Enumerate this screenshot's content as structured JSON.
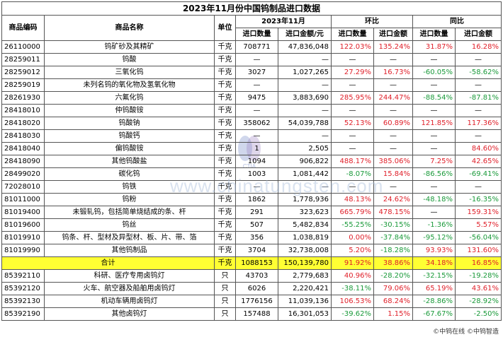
{
  "title": "2023年11月份中国钨制品进口数据",
  "headers": {
    "code": "商品编码",
    "name": "商品名称",
    "unit": "单位",
    "month_group": "2023年11月",
    "mom_group": "环比",
    "yoy_group": "同比",
    "import_qty": "进口数量",
    "import_amount": "进口金额/元",
    "qty": "进口数量",
    "amount": "进口金额"
  },
  "rows": [
    {
      "code": "26110000",
      "name": "钨矿砂及其精矿",
      "unit": "千克",
      "qty": "708771",
      "amt": "47,836,048",
      "mom_q": "122.03%",
      "mom_a": "135.24%",
      "yoy_q": "31.87%",
      "yoy_a": "16.28%"
    },
    {
      "code": "28259011",
      "name": "钨酸",
      "unit": "千克",
      "qty": "—",
      "amt": "—",
      "mom_q": "—",
      "mom_a": "—",
      "yoy_q": "—",
      "yoy_a": "—"
    },
    {
      "code": "28259012",
      "name": "三氧化钨",
      "unit": "千克",
      "qty": "3027",
      "amt": "1,027,265",
      "mom_q": "27.29%",
      "mom_a": "16.73%",
      "yoy_q": "-60.05%",
      "yoy_a": "-58.62%"
    },
    {
      "code": "28259019",
      "name": "未列名钨的氧化物及氢氧化物",
      "unit": "千克",
      "qty": "—",
      "amt": "—",
      "mom_q": "—",
      "mom_a": "—",
      "yoy_q": "—",
      "yoy_a": "—"
    },
    {
      "code": "28261930",
      "name": "六氟化钨",
      "unit": "千克",
      "qty": "9475",
      "amt": "3,883,690",
      "mom_q": "285.95%",
      "mom_a": "244.47%",
      "yoy_q": "-88.54%",
      "yoy_a": "-87.81%"
    },
    {
      "code": "28418010",
      "name": "仲钨酸铵",
      "unit": "千克",
      "qty": "—",
      "amt": "—",
      "mom_q": "—",
      "mom_a": "—",
      "yoy_q": "—",
      "yoy_a": "—"
    },
    {
      "code": "28418020",
      "name": "钨酸钠",
      "unit": "千克",
      "qty": "358062",
      "amt": "54,039,788",
      "mom_q": "52.13%",
      "mom_a": "60.89%",
      "yoy_q": "121.85%",
      "yoy_a": "117.36%"
    },
    {
      "code": "28418030",
      "name": "钨酸钙",
      "unit": "千克",
      "qty": "—",
      "amt": "—",
      "mom_q": "—",
      "mom_a": "—",
      "yoy_q": "—",
      "yoy_a": "—"
    },
    {
      "code": "28418040",
      "name": "偏钨酸铵",
      "unit": "千克",
      "qty": "1",
      "amt": "2,505",
      "mom_q": "—",
      "mom_a": "—",
      "yoy_q": "—",
      "yoy_a": "84.60%"
    },
    {
      "code": "28418090",
      "name": "其他钨酸盐",
      "unit": "千克",
      "qty": "1094",
      "amt": "906,822",
      "mom_q": "488.17%",
      "mom_a": "385.06%",
      "yoy_q": "7.25%",
      "yoy_a": "42.65%"
    },
    {
      "code": "28499020",
      "name": "碳化钨",
      "unit": "千克",
      "qty": "1003",
      "amt": "1,081,442",
      "mom_q": "-8.07%",
      "mom_a": "15.84%",
      "yoy_q": "-86.56%",
      "yoy_a": "-69.41%"
    },
    {
      "code": "72028010",
      "name": "钨铁",
      "unit": "千克",
      "qty": "—",
      "amt": "—",
      "mom_q": "—",
      "mom_a": "—",
      "yoy_q": "—",
      "yoy_a": "—"
    },
    {
      "code": "81011000",
      "name": "钨粉",
      "unit": "千克",
      "qty": "1862",
      "amt": "1,778,936",
      "mom_q": "48.13%",
      "mom_a": "24.62%",
      "yoy_q": "-48.18%",
      "yoy_a": "-16.35%"
    },
    {
      "code": "81019400",
      "name": "未锻轧钨，包括简单烧结成的条、杆",
      "unit": "千克",
      "qty": "291",
      "amt": "323,623",
      "mom_q": "665.79%",
      "mom_a": "478.15%",
      "yoy_q": "—",
      "yoy_a": "159.31%"
    },
    {
      "code": "81019600",
      "name": "钨丝",
      "unit": "千克",
      "qty": "507",
      "amt": "5,482,834",
      "mom_q": "-55.25%",
      "mom_a": "-30.15%",
      "yoy_q": "-1.36%",
      "yoy_a": "5.57%"
    },
    {
      "code": "81019910",
      "name": "钨条、杆、型材及异型材、板、片、带、箔",
      "unit": "千克",
      "qty": "356",
      "amt": "1,038,819",
      "mom_q": "0.00%",
      "mom_a": "-37.84%",
      "yoy_q": "-95.12%",
      "yoy_a": "-56.04%"
    },
    {
      "code": "81019990",
      "name": "其他钨制品",
      "unit": "千克",
      "qty": "3704",
      "amt": "32,738,008",
      "mom_q": "5.20%",
      "mom_a": "-18.28%",
      "yoy_q": "93.93%",
      "yoy_a": "131.60%"
    }
  ],
  "total": {
    "name": "合计",
    "unit": "千克",
    "qty": "1088153",
    "amt": "150,139,780",
    "mom_q": "91.92%",
    "mom_a": "38.86%",
    "yoy_q": "34.18%",
    "yoy_a": "16.85%"
  },
  "lamp_rows": [
    {
      "code": "85392110",
      "name": "科研、医疗专用卤钨灯",
      "unit": "只",
      "qty": "43703",
      "amt": "2,779,683",
      "mom_q": "40.96%",
      "mom_a": "-28.20%",
      "yoy_q": "-32.15%",
      "yoy_a": "-19.28%"
    },
    {
      "code": "85392120",
      "name": "火车、航空器及船舶用卤钨灯",
      "unit": "只",
      "qty": "6026",
      "amt": "2,220,421",
      "mom_q": "-38.11%",
      "mom_a": "79.06%",
      "yoy_q": "65.19%",
      "yoy_a": "43.61%"
    },
    {
      "code": "85392130",
      "name": "机动车辆用卤钨灯",
      "unit": "只",
      "qty": "1776156",
      "amt": "11,039,136",
      "mom_q": "106.53%",
      "mom_a": "68.24%",
      "yoy_q": "-28.86%",
      "yoy_a": "-28.92%"
    },
    {
      "code": "85392190",
      "name": "其他卤钨灯",
      "unit": "只",
      "qty": "157488",
      "amt": "16,301,053",
      "mom_q": "-39.62%",
      "mom_a": "1.15%",
      "yoy_q": "-67.67%",
      "yoy_a": "-2.50%"
    }
  ],
  "colors": {
    "positive": "#e0202a",
    "negative": "#1a9a3a",
    "total_bg": "#ffff33"
  },
  "watermark": "www.chinatungsten.com",
  "watermark_logo": "CTIA",
  "footer": "©中钨在线 ©中钨智造"
}
